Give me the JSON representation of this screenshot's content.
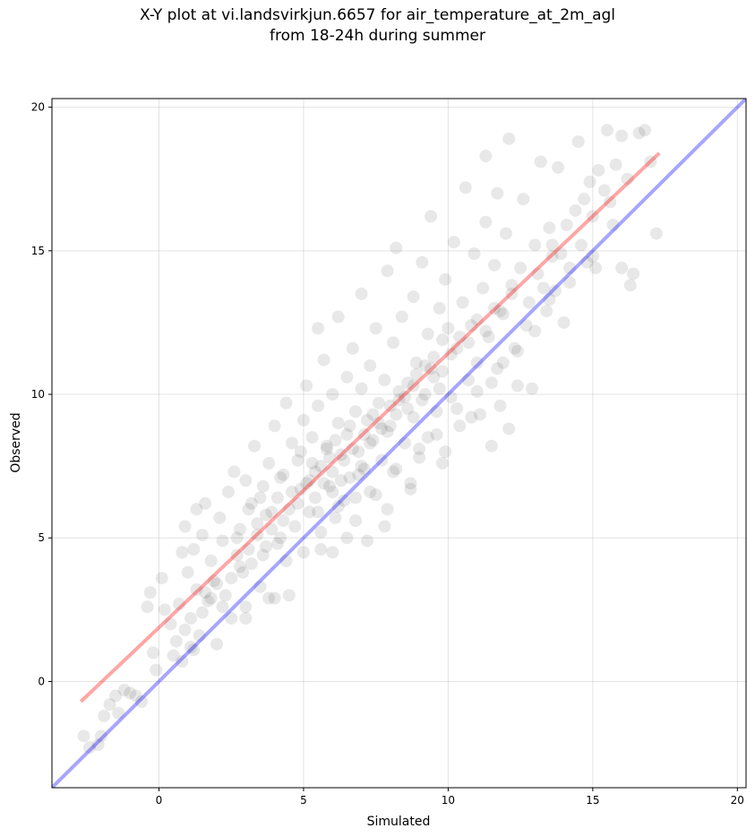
{
  "chart_data": {
    "type": "scatter",
    "title_line1": "X-Y plot at vi.landsvirkjun.6657 for air_temperature_at_2m_agl",
    "title_line2": "from 18-24h during summer",
    "xlabel": "Simulated",
    "ylabel": "Observed",
    "xlim": [
      -3.7,
      20.3
    ],
    "ylim": [
      -3.7,
      20.3
    ],
    "xticks": [
      0,
      5,
      10,
      15,
      20
    ],
    "yticks": [
      0,
      5,
      10,
      15,
      20
    ],
    "grid": true,
    "point_color": "#000000",
    "point_alpha": 0.09,
    "regression_line": {
      "color": "#ff0000",
      "alpha": 0.35,
      "x": [
        -2.7,
        17.3
      ],
      "y": [
        -0.7,
        18.4
      ]
    },
    "identity_line": {
      "color": "#0000ff",
      "alpha": 0.35,
      "x": [
        -3.7,
        20.3
      ],
      "y": [
        -3.7,
        20.3
      ]
    },
    "points": [
      [
        -2.6,
        -1.9
      ],
      [
        -2.4,
        -2.3
      ],
      [
        -2.1,
        -2.2
      ],
      [
        -2.0,
        -1.9
      ],
      [
        -1.9,
        -1.2
      ],
      [
        -1.7,
        -0.8
      ],
      [
        -1.5,
        -0.5
      ],
      [
        -1.4,
        -1.1
      ],
      [
        -1.2,
        -0.3
      ],
      [
        -1.0,
        -0.4
      ],
      [
        -0.8,
        -0.5
      ],
      [
        -0.6,
        -0.7
      ],
      [
        -0.4,
        2.6
      ],
      [
        -0.3,
        3.1
      ],
      [
        -0.2,
        1.0
      ],
      [
        -0.1,
        0.4
      ],
      [
        0.1,
        3.6
      ],
      [
        0.2,
        2.5
      ],
      [
        0.4,
        2.0
      ],
      [
        0.6,
        1.4
      ],
      [
        0.7,
        2.7
      ],
      [
        0.8,
        4.5
      ],
      [
        0.9,
        5.4
      ],
      [
        1.0,
        3.8
      ],
      [
        1.1,
        1.2
      ],
      [
        1.1,
        2.2
      ],
      [
        1.2,
        4.6
      ],
      [
        1.3,
        6.0
      ],
      [
        1.3,
        3.2
      ],
      [
        1.4,
        1.6
      ],
      [
        1.5,
        5.1
      ],
      [
        1.6,
        6.2
      ],
      [
        1.7,
        2.8
      ],
      [
        1.8,
        4.2
      ],
      [
        1.9,
        3.5
      ],
      [
        2.0,
        1.3
      ],
      [
        2.1,
        5.7
      ],
      [
        2.2,
        4.9
      ],
      [
        2.3,
        3.0
      ],
      [
        2.4,
        6.6
      ],
      [
        2.5,
        2.2
      ],
      [
        2.6,
        7.3
      ],
      [
        2.7,
        4.4
      ],
      [
        2.8,
        5.3
      ],
      [
        2.9,
        3.8
      ],
      [
        3.0,
        7.0
      ],
      [
        3.0,
        2.6
      ],
      [
        3.1,
        6.0
      ],
      [
        3.2,
        4.1
      ],
      [
        3.3,
        8.2
      ],
      [
        3.4,
        5.5
      ],
      [
        3.5,
        3.3
      ],
      [
        3.6,
        6.8
      ],
      [
        3.7,
        4.7
      ],
      [
        3.8,
        7.6
      ],
      [
        3.9,
        5.9
      ],
      [
        4.0,
        2.9
      ],
      [
        4.0,
        8.9
      ],
      [
        4.1,
        6.4
      ],
      [
        4.2,
        5.0
      ],
      [
        4.3,
        7.2
      ],
      [
        4.4,
        9.7
      ],
      [
        4.4,
        4.2
      ],
      [
        4.5,
        6.0
      ],
      [
        4.6,
        8.3
      ],
      [
        4.7,
        5.4
      ],
      [
        4.8,
        7.7
      ],
      [
        4.9,
        6.7
      ],
      [
        5.0,
        9.1
      ],
      [
        5.0,
        4.5
      ],
      [
        5.1,
        10.3
      ],
      [
        5.2,
        7.0
      ],
      [
        5.2,
        5.9
      ],
      [
        5.3,
        8.5
      ],
      [
        5.4,
        6.4
      ],
      [
        5.5,
        12.3
      ],
      [
        5.5,
        9.6
      ],
      [
        5.6,
        7.5
      ],
      [
        5.6,
        5.2
      ],
      [
        5.7,
        11.2
      ],
      [
        5.8,
        8.1
      ],
      [
        5.9,
        6.8
      ],
      [
        6.0,
        10.0
      ],
      [
        6.0,
        7.3
      ],
      [
        6.1,
        5.7
      ],
      [
        6.2,
        9.0
      ],
      [
        6.2,
        12.7
      ],
      [
        6.3,
        7.9
      ],
      [
        6.4,
        6.3
      ],
      [
        6.5,
        10.6
      ],
      [
        6.5,
        8.6
      ],
      [
        6.6,
        7.1
      ],
      [
        6.7,
        11.6
      ],
      [
        6.8,
        9.4
      ],
      [
        6.8,
        5.6
      ],
      [
        6.9,
        8.0
      ],
      [
        7.0,
        10.2
      ],
      [
        7.0,
        13.5
      ],
      [
        7.1,
        7.4
      ],
      [
        7.2,
        9.1
      ],
      [
        7.2,
        4.9
      ],
      [
        7.3,
        11.0
      ],
      [
        7.4,
        8.4
      ],
      [
        7.5,
        6.5
      ],
      [
        7.5,
        12.3
      ],
      [
        7.6,
        9.7
      ],
      [
        7.7,
        7.7
      ],
      [
        7.8,
        10.5
      ],
      [
        7.9,
        14.3
      ],
      [
        7.9,
        6.0
      ],
      [
        8.0,
        8.9
      ],
      [
        8.1,
        11.8
      ],
      [
        8.2,
        7.4
      ],
      [
        8.2,
        15.1
      ],
      [
        8.3,
        9.8
      ],
      [
        8.4,
        12.7
      ],
      [
        8.5,
        8.3
      ],
      [
        8.6,
        10.4
      ],
      [
        8.7,
        6.7
      ],
      [
        8.8,
        13.4
      ],
      [
        8.8,
        9.2
      ],
      [
        8.9,
        11.1
      ],
      [
        9.0,
        7.8
      ],
      [
        9.1,
        14.6
      ],
      [
        9.2,
        10.0
      ],
      [
        9.3,
        12.1
      ],
      [
        9.3,
        8.5
      ],
      [
        9.4,
        16.2
      ],
      [
        9.5,
        11.3
      ],
      [
        9.6,
        9.4
      ],
      [
        9.7,
        13.0
      ],
      [
        9.8,
        7.6
      ],
      [
        9.8,
        10.8
      ],
      [
        9.9,
        14.0
      ],
      [
        10.0,
        12.3
      ],
      [
        10.1,
        9.9
      ],
      [
        10.2,
        15.3
      ],
      [
        10.3,
        11.6
      ],
      [
        10.4,
        8.9
      ],
      [
        10.5,
        13.2
      ],
      [
        10.6,
        17.2
      ],
      [
        10.7,
        10.5
      ],
      [
        10.8,
        12.4
      ],
      [
        10.9,
        14.9
      ],
      [
        11.0,
        11.1
      ],
      [
        11.1,
        9.3
      ],
      [
        11.2,
        13.7
      ],
      [
        11.3,
        18.3
      ],
      [
        11.3,
        16.0
      ],
      [
        11.4,
        12.0
      ],
      [
        11.5,
        10.4
      ],
      [
        11.6,
        14.5
      ],
      [
        11.7,
        17.0
      ],
      [
        11.8,
        12.9
      ],
      [
        11.9,
        11.1
      ],
      [
        12.0,
        15.6
      ],
      [
        12.1,
        18.9
      ],
      [
        12.2,
        13.8
      ],
      [
        12.3,
        11.6
      ],
      [
        12.4,
        10.3
      ],
      [
        12.5,
        14.4
      ],
      [
        12.6,
        16.8
      ],
      [
        12.7,
        12.4
      ],
      [
        12.8,
        13.2
      ],
      [
        12.9,
        10.2
      ],
      [
        13.0,
        15.2
      ],
      [
        13.1,
        14.2
      ],
      [
        13.2,
        18.1
      ],
      [
        13.3,
        13.7
      ],
      [
        13.4,
        12.9
      ],
      [
        13.5,
        15.8
      ],
      [
        13.6,
        14.8
      ],
      [
        13.7,
        13.6
      ],
      [
        13.8,
        17.9
      ],
      [
        13.9,
        14.9
      ],
      [
        14.0,
        12.5
      ],
      [
        14.1,
        15.9
      ],
      [
        14.2,
        14.4
      ],
      [
        14.4,
        16.4
      ],
      [
        14.5,
        18.8
      ],
      [
        14.6,
        15.2
      ],
      [
        14.7,
        16.8
      ],
      [
        14.8,
        14.6
      ],
      [
        14.9,
        17.4
      ],
      [
        15.0,
        16.2
      ],
      [
        15.1,
        14.4
      ],
      [
        15.2,
        17.8
      ],
      [
        15.4,
        17.1
      ],
      [
        15.5,
        19.2
      ],
      [
        15.6,
        16.7
      ],
      [
        15.8,
        18.0
      ],
      [
        16.0,
        19.0
      ],
      [
        16.2,
        17.5
      ],
      [
        16.3,
        13.8
      ],
      [
        16.4,
        14.2
      ],
      [
        16.6,
        19.1
      ],
      [
        16.8,
        19.2
      ],
      [
        17.0,
        18.1
      ],
      [
        17.2,
        15.6
      ],
      [
        16.0,
        14.4
      ],
      [
        15.7,
        15.9
      ],
      [
        13.6,
        15.2
      ],
      [
        3.2,
        6.2
      ],
      [
        3.7,
        5.8
      ],
      [
        4.2,
        7.1
      ],
      [
        4.6,
        6.6
      ],
      [
        4.9,
        8.0
      ],
      [
        5.3,
        7.6
      ],
      [
        5.7,
        6.9
      ],
      [
        5.9,
        7.8
      ],
      [
        6.1,
        8.4
      ],
      [
        6.3,
        7.0
      ],
      [
        6.6,
        8.9
      ],
      [
        6.9,
        7.2
      ],
      [
        7.1,
        8.6
      ],
      [
        7.4,
        9.3
      ],
      [
        7.7,
        8.8
      ],
      [
        8.0,
        9.6
      ],
      [
        8.3,
        10.1
      ],
      [
        8.6,
        9.5
      ],
      [
        8.9,
        10.7
      ],
      [
        9.2,
        11.0
      ],
      [
        9.5,
        10.6
      ],
      [
        9.8,
        11.9
      ],
      [
        10.1,
        11.4
      ],
      [
        10.4,
        12.0
      ],
      [
        10.7,
        11.8
      ],
      [
        11.0,
        12.6
      ],
      [
        11.3,
        12.2
      ],
      [
        11.6,
        13.0
      ],
      [
        11.9,
        12.8
      ],
      [
        12.2,
        13.5
      ],
      [
        4.3,
        5.6
      ],
      [
        4.8,
        6.2
      ],
      [
        5.1,
        6.9
      ],
      [
        5.4,
        7.3
      ],
      [
        5.8,
        8.2
      ],
      [
        6.0,
        6.6
      ],
      [
        6.4,
        7.7
      ],
      [
        6.7,
        8.1
      ],
      [
        7.0,
        7.5
      ],
      [
        7.3,
        8.3
      ],
      [
        7.6,
        9.0
      ],
      [
        7.9,
        8.7
      ],
      [
        8.2,
        9.3
      ],
      [
        8.5,
        9.9
      ],
      [
        8.8,
        10.3
      ],
      [
        9.1,
        9.8
      ],
      [
        9.4,
        10.9
      ],
      [
        9.7,
        10.2
      ],
      [
        2.5,
        3.6
      ],
      [
        2.8,
        4.0
      ],
      [
        3.1,
        4.6
      ],
      [
        3.4,
        5.1
      ],
      [
        3.6,
        4.4
      ],
      [
        3.9,
        5.3
      ],
      [
        4.1,
        4.8
      ],
      [
        1.8,
        2.9
      ],
      [
        2.0,
        3.4
      ],
      [
        2.2,
        2.6
      ],
      [
        1.5,
        2.4
      ],
      [
        0.9,
        1.8
      ],
      [
        0.5,
        0.9
      ],
      [
        0.8,
        0.7
      ],
      [
        1.2,
        1.1
      ],
      [
        1.6,
        3.1
      ],
      [
        2.7,
        5.0
      ],
      [
        3.5,
        6.4
      ],
      [
        5.5,
        5.9
      ],
      [
        6.2,
        6.1
      ],
      [
        6.8,
        6.4
      ],
      [
        7.3,
        6.6
      ],
      [
        8.1,
        7.3
      ],
      [
        9.0,
        8.1
      ],
      [
        9.6,
        8.6
      ],
      [
        10.3,
        9.5
      ],
      [
        11.0,
        10.1
      ],
      [
        11.7,
        10.9
      ],
      [
        12.4,
        11.5
      ],
      [
        13.0,
        12.2
      ],
      [
        13.5,
        13.3
      ],
      [
        14.2,
        13.9
      ],
      [
        15.0,
        14.8
      ],
      [
        7.8,
        5.4
      ],
      [
        8.7,
        6.9
      ],
      [
        9.9,
        8.0
      ],
      [
        10.8,
        9.2
      ],
      [
        11.8,
        9.6
      ],
      [
        12.1,
        8.8
      ],
      [
        11.5,
        8.2
      ],
      [
        6.0,
        4.5
      ],
      [
        6.5,
        5.0
      ],
      [
        5.6,
        4.6
      ],
      [
        4.5,
        3.0
      ],
      [
        3.8,
        2.9
      ],
      [
        3.0,
        2.2
      ]
    ]
  }
}
